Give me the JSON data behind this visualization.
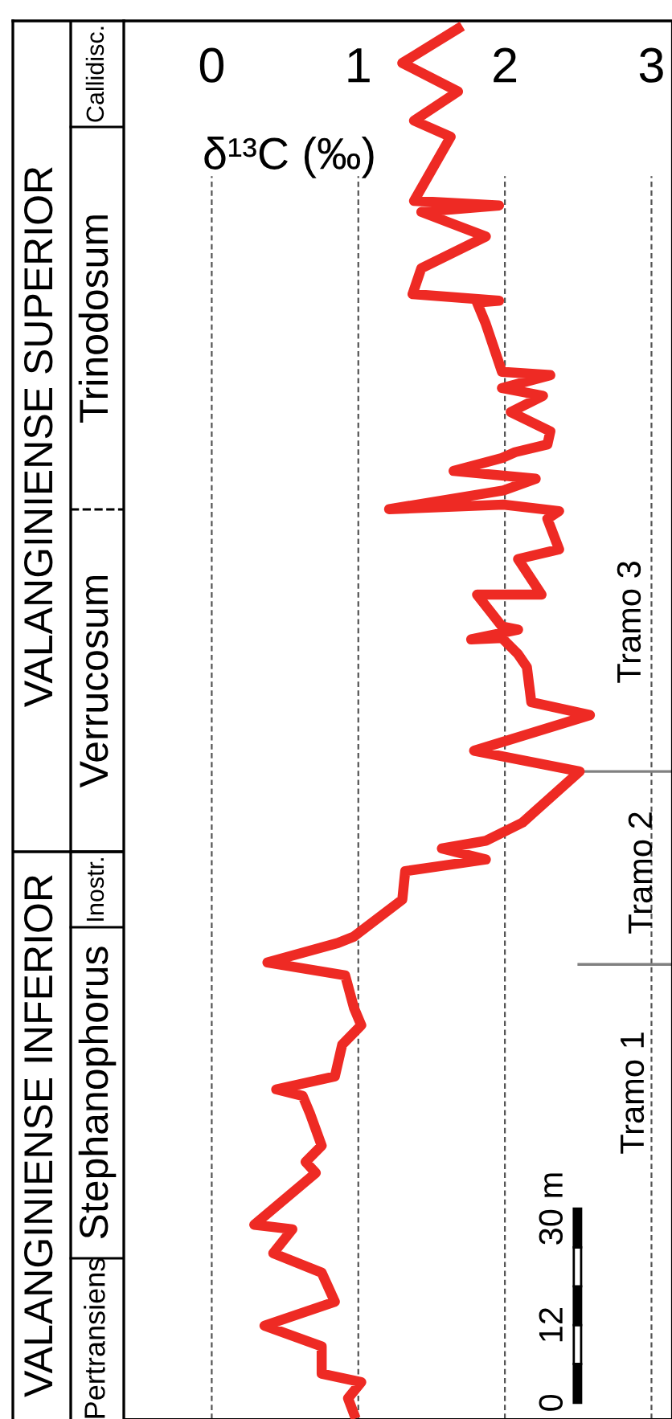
{
  "chart_data": {
    "type": "line",
    "xlabel": "δ¹³C (‰)",
    "xlim": [
      -0.6,
      3.14
    ],
    "xticks": [
      0,
      1,
      2,
      3
    ],
    "ylim": [
      -2.5,
      213.4
    ],
    "yticks": [
      0,
      12,
      {
        "value": 30,
        "label": "30 m"
      }
    ],
    "grid": "x",
    "line_style": "solid",
    "marker": "none",
    "series": [
      {
        "color": "#ee2a24",
        "x": [
          1.68,
          1.3,
          1.68,
          1.38,
          1.63,
          1.38,
          1.96,
          1.43,
          1.87,
          1.43,
          1.37,
          1.96,
          1.81,
          1.87,
          1.98,
          2.31,
          1.98,
          2.26,
          2.04,
          2.31,
          2.29,
          2.07,
          1.98,
          1.65,
          2.21,
          1.99,
          1.21,
          1.99,
          2.37,
          2.29,
          2.37,
          2.09,
          2.25,
          1.81,
          1.98,
          2.09,
          1.77,
          1.98,
          2.09,
          2.15,
          2.18,
          2.58,
          1.79,
          2.51,
          2.12,
          1.87,
          1.57,
          1.87,
          1.32,
          1.3,
          0.97,
          0.86,
          0.38,
          0.91,
          0.97,
          1.02,
          0.89,
          0.84,
          0.44,
          0.62,
          0.67,
          0.75,
          0.64,
          0.71,
          0.29,
          0.55,
          0.42,
          0.75,
          0.84,
          0.36,
          0.75,
          0.75,
          1.02,
          0.93,
          0.97
        ],
        "values": [
          212.2,
          206.9,
          202.5,
          198.0,
          195.5,
          185.6,
          184.9,
          183.9,
          180.1,
          175.2,
          171.2,
          170.2,
          169.9,
          166.6,
          159.2,
          158.7,
          156.7,
          155.5,
          153.0,
          150.0,
          148.0,
          146.8,
          145.9,
          143.9,
          142.7,
          140.9,
          138.0,
          138.7,
          137.7,
          136.5,
          131.8,
          130.3,
          124.8,
          124.8,
          119.9,
          119.4,
          117.9,
          118.1,
          115.6,
          113.6,
          108.2,
          106.2,
          100.7,
          97.5,
          89.6,
          86.8,
          85.6,
          83.9,
          82.1,
          77.7,
          72.0,
          71.0,
          68.0,
          66.0,
          61.0,
          58.3,
          55.3,
          50.4,
          48.4,
          47.4,
          44.7,
          39.7,
          37.2,
          35.5,
          27.5,
          26.8,
          23.1,
          20.1,
          15.6,
          11.9,
          8.7,
          4.5,
          3.2,
          0.7,
          -1.7
        ]
      }
    ],
    "ref_lines": [
      {
        "axis": "y",
        "value": 97.5,
        "color": "#808080"
      },
      {
        "axis": "y",
        "value": 67.7,
        "color": "#808080"
      }
    ],
    "annotations": [
      "VALANGINIENSE SUPERIOR",
      "VALANGINIENSE INFERIOR",
      "Callidisc.",
      "Trinodosum",
      "Verrucosum",
      "Inostr.",
      "Stephanophorus",
      "Pertransiens",
      "Tramo 3",
      "Tramo 2",
      "Tramo 1"
    ]
  }
}
